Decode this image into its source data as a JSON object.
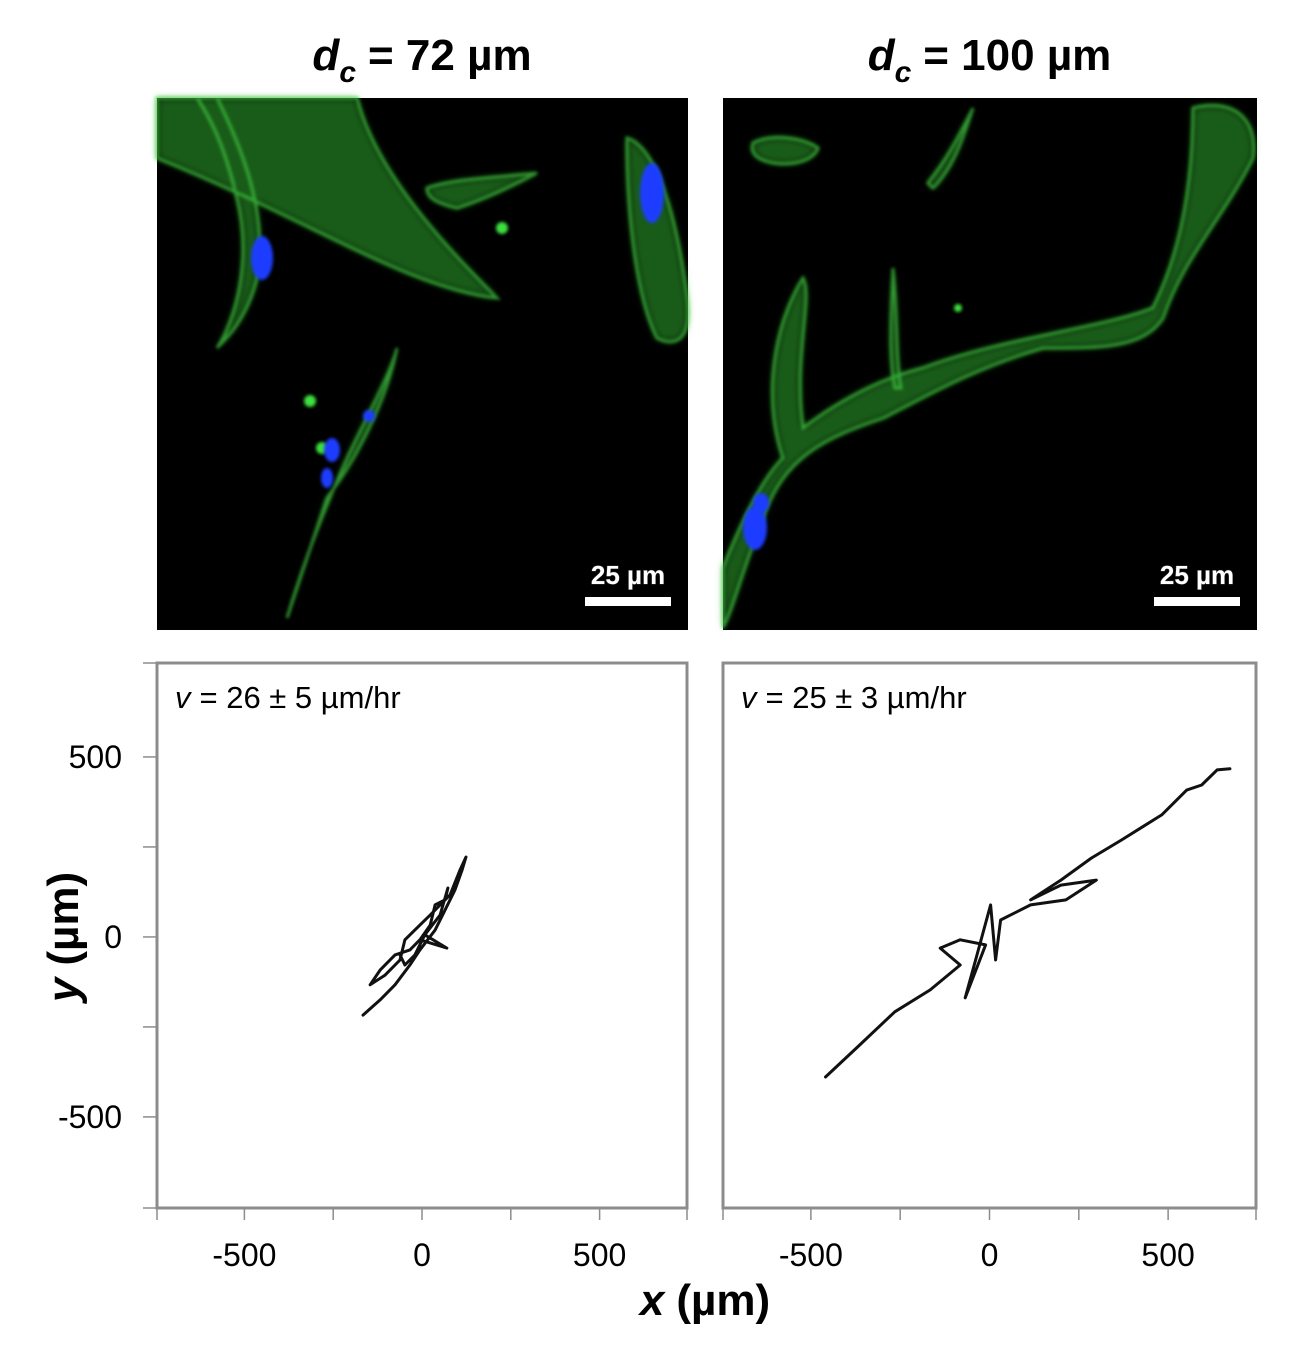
{
  "chart_data": [
    {
      "type": "line",
      "title": {
        "symbol": "d",
        "subscript": "c",
        "text": "= 72 µm"
      },
      "scale_bar_label": "25 µm",
      "annotation": {
        "symbol": "v",
        "text": "= 26 ± 5 µm/hr"
      },
      "color": "#111111",
      "x": [
        -166,
        -118,
        -76,
        -34,
        -6,
        37,
        65,
        93,
        113,
        124,
        107,
        79,
        51,
        23,
        -6,
        -48,
        -62,
        -104,
        -146,
        -118,
        -76,
        -34,
        8,
        51,
        73,
        65,
        37,
        23,
        -6,
        70,
        8,
        -20,
        -48,
        -62
      ],
      "values": [
        -217,
        -175,
        -133,
        -78,
        -36,
        19,
        75,
        131,
        186,
        222,
        186,
        117,
        89,
        61,
        33,
        -8,
        -64,
        -106,
        -133,
        -92,
        -50,
        -36,
        6,
        61,
        136,
        103,
        89,
        33,
        -8,
        -31,
        6,
        -50,
        -78,
        -50
      ],
      "xlim": [
        -746,
        746
      ],
      "ylim": [
        -753,
        761
      ],
      "xticks": [
        -500,
        0,
        500
      ],
      "xminorticks": [
        -250,
        250
      ],
      "yticks": [
        -500,
        0,
        500
      ],
      "yminorticks": [
        -250,
        250
      ]
    },
    {
      "type": "line",
      "title": {
        "symbol": "d",
        "subscript": "c",
        "text": "= 100 µm"
      },
      "scale_bar_label": "25 µm",
      "annotation": {
        "symbol": "v",
        "text": "= 25 ± 3 µm/hr"
      },
      "color": "#111111",
      "x": [
        -459,
        -363,
        -265,
        -166,
        -82,
        -138,
        -82,
        -11,
        -68,
        -39,
        3,
        17,
        31,
        115,
        214,
        299,
        200,
        115,
        200,
        285,
        369,
        482,
        552,
        594,
        637,
        673
      ],
      "values": [
        -389,
        -300,
        -208,
        -147,
        -78,
        -31,
        -8,
        -22,
        -169,
        -64,
        89,
        -64,
        47,
        89,
        103,
        158,
        144,
        103,
        158,
        219,
        269,
        339,
        408,
        422,
        464,
        467
      ],
      "xlim": [
        -746,
        746
      ],
      "ylim": [
        -753,
        761
      ],
      "xticks": [
        -500,
        0,
        500
      ],
      "xminorticks": [
        -250,
        250
      ]
    }
  ],
  "axis_labels": {
    "x": {
      "symbol": "x",
      "text": "(µm)"
    },
    "y": {
      "symbol": "y",
      "text": "(µm)"
    }
  }
}
